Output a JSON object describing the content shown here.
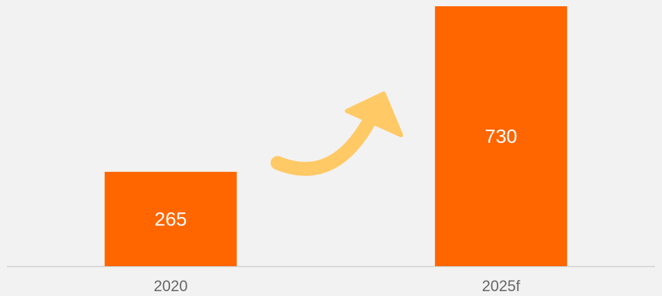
{
  "chart_data": {
    "type": "bar",
    "categories": [
      "2020",
      "2025f"
    ],
    "values": [
      265,
      730
    ],
    "color": "#ff6600",
    "ylim": [
      0,
      730
    ]
  }
}
